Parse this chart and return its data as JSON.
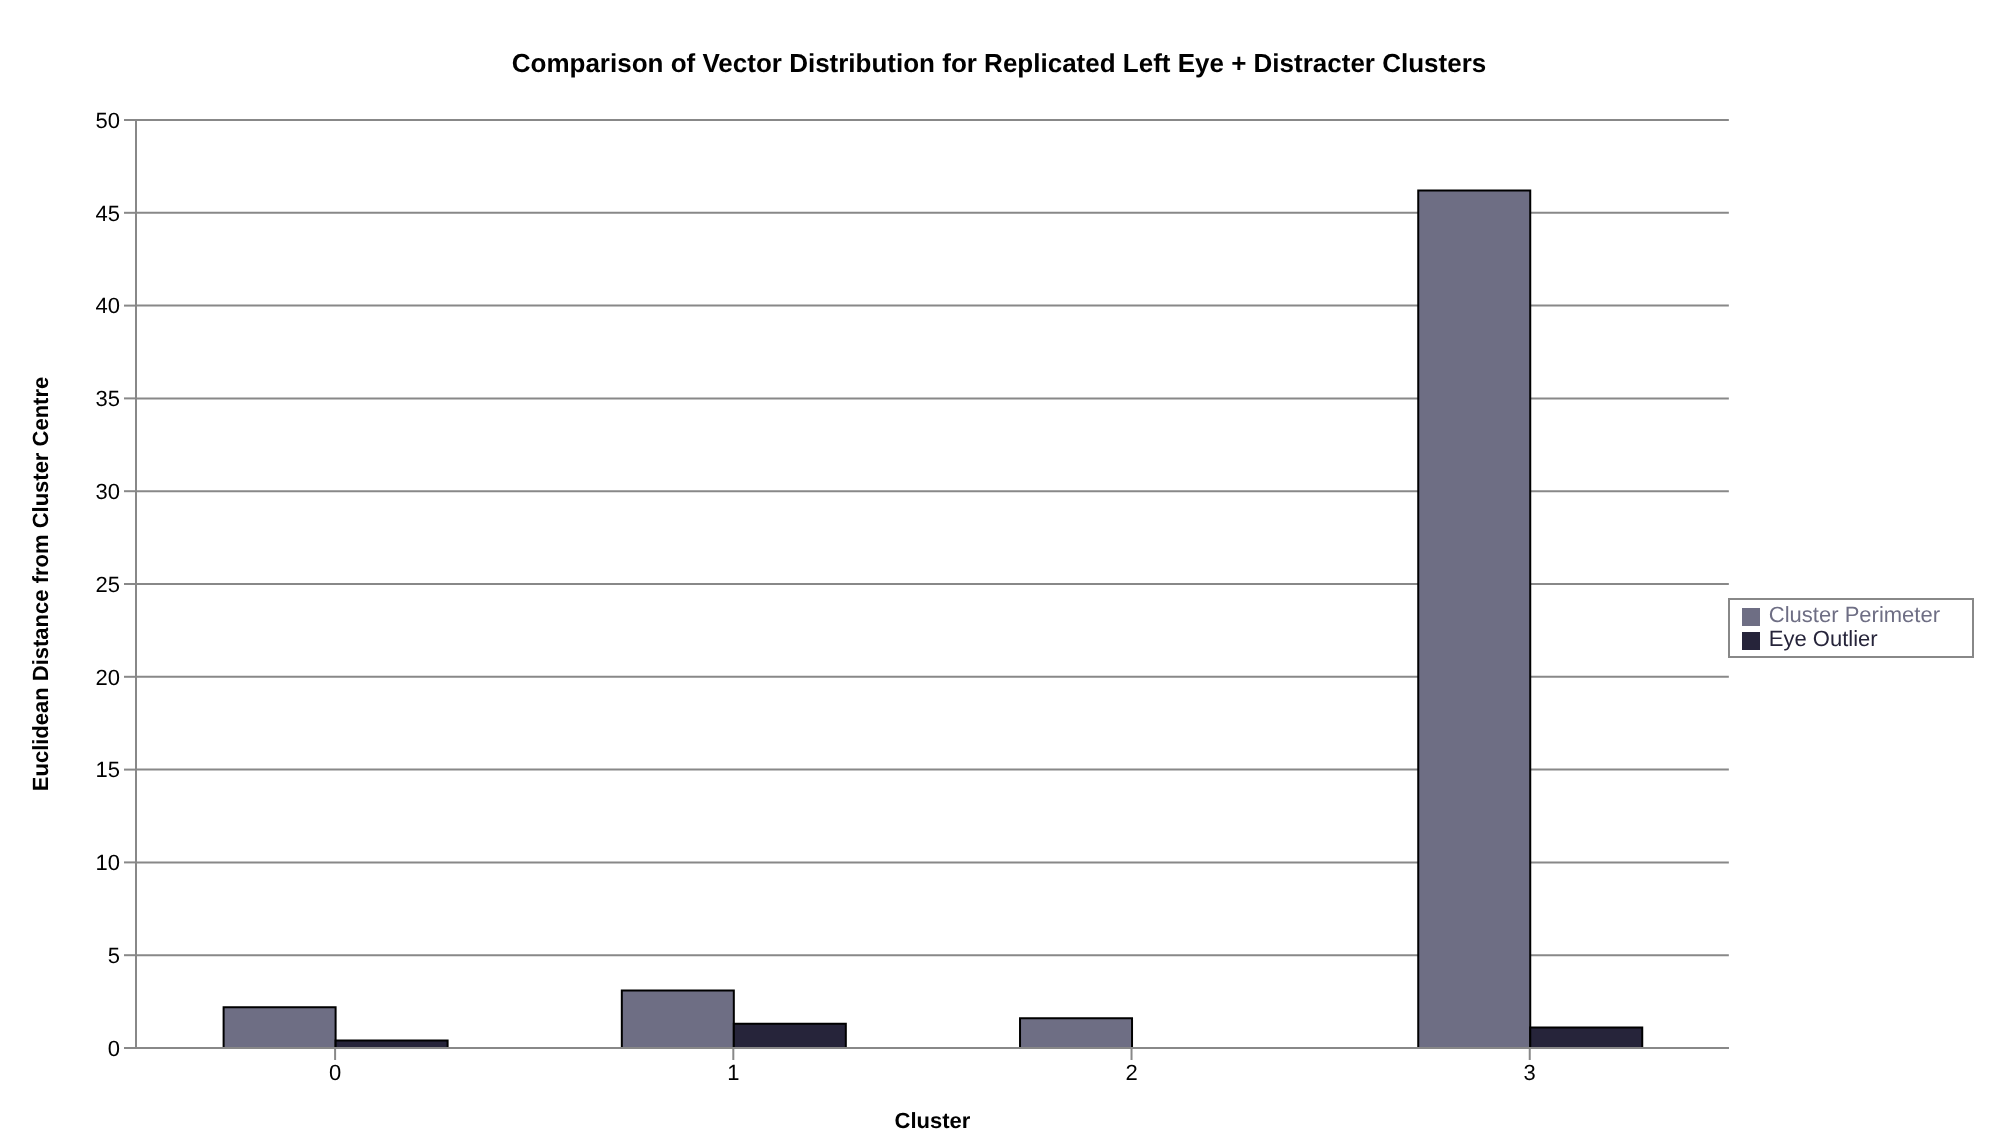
{
  "chart_data": {
    "type": "bar",
    "title": "Comparison of Vector Distribution for Replicated Left Eye + Distracter Clusters",
    "xlabel": "Cluster",
    "ylabel": "Euclidean Distance from Cluster Centre",
    "categories": [
      "0",
      "1",
      "2",
      "3"
    ],
    "series": [
      {
        "name": "Cluster Perimeter",
        "color": "#6e6e84",
        "values": [
          2.2,
          3.1,
          1.6,
          46.2
        ]
      },
      {
        "name": "Eye Outlier",
        "color": "#26243a",
        "values": [
          0.4,
          1.3,
          0,
          1.1
        ]
      }
    ],
    "ylim": [
      0,
      50
    ],
    "yticks": [
      0,
      5,
      10,
      15,
      20,
      25,
      30,
      35,
      40,
      45,
      50
    ],
    "grid": "y",
    "legend": "right"
  }
}
